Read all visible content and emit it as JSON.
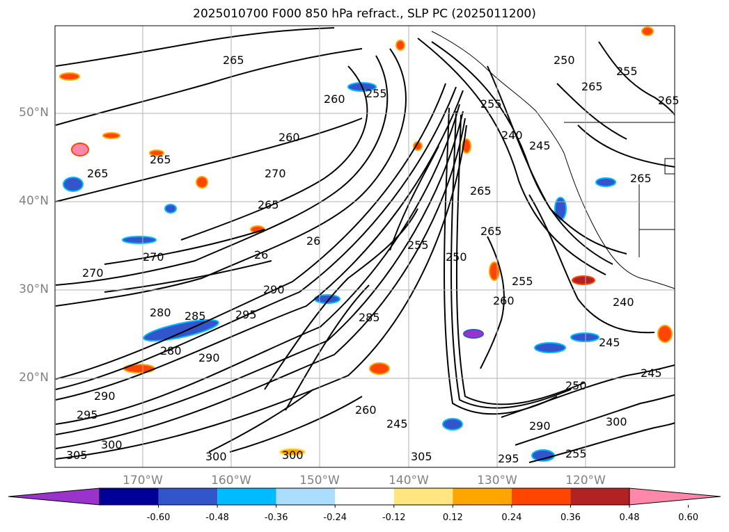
{
  "title": "2025010700 F000 850 hPa refract., SLP PC (2025011200)",
  "lat_labels": [
    "50°N",
    "40°N",
    "30°N",
    "20°N"
  ],
  "lon_labels": [
    "170°W",
    "160°W",
    "150°W",
    "140°W",
    "130°W",
    "120°W"
  ],
  "contour_labels": [
    "265",
    "255",
    "250",
    "255",
    "265",
    "260",
    "260",
    "255",
    "265",
    "240",
    "245",
    "265",
    "265",
    "270",
    "265",
    "265",
    "265",
    "26",
    "26",
    "270",
    "270",
    "255",
    "265",
    "280",
    "250",
    "255",
    "260",
    "290",
    "295",
    "280",
    "285",
    "290",
    "285",
    "300",
    "305",
    "295",
    "290",
    "300",
    "255",
    "260",
    "245",
    "240",
    "245",
    "245",
    "250",
    "290",
    "295",
    "300",
    "305",
    "300"
  ],
  "colorbar": {
    "ticks": [
      "-0.60",
      "-0.48",
      "-0.36",
      "-0.24",
      "-0.12",
      "0.12",
      "0.24",
      "0.36",
      "0.48",
      "0.60"
    ],
    "colors": [
      "#9933cc",
      "#000099",
      "#3355cc",
      "#00bbff",
      "#aaddff",
      "#ffffff",
      "#ffe680",
      "#ffa500",
      "#ff4500",
      "#b22222",
      "#ff88aa"
    ]
  }
}
